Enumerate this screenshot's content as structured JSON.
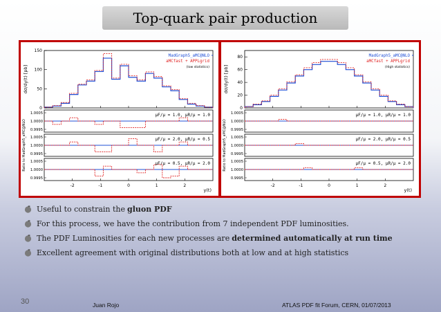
{
  "title": "Top-quark pair production",
  "bullets": [
    {
      "text": "Useful to constrain the",
      "bold": "gluon PDF"
    },
    {
      "text": "For this process, we have the contribution from 7 independent PDF luminosities.",
      "bold": ""
    },
    {
      "text": "The PDF Luminosities for each new processes are",
      "bold": "determined automatically at run time"
    },
    {
      "text": "Excellent agreement with original distributions both at low and at high statistics",
      "bold": ""
    }
  ],
  "footer": {
    "page": "30",
    "author": "Juan Rojo",
    "event": "ATLAS PDF fit Forum, CERN, 01/07/2013"
  },
  "colors": {
    "frame": "#c00000",
    "mg": "#1f4fd6",
    "appl": "#e02020"
  },
  "chart_data": [
    {
      "type": "line",
      "ylabel": "dσ/dy(t) [pb]",
      "ratio_ylabel": "Ratio to MadGraph5_aMC@NLO",
      "xlabel": "y(t)",
      "legend": [
        "MadGraph5_aMC@NLO",
        "aMCfast + APPLgrid"
      ],
      "note": "(low statistics)",
      "ylim": [
        0,
        150
      ],
      "yticks": [
        0,
        50,
        100,
        150
      ],
      "xlim": [
        -3,
        3
      ],
      "xticks": [
        -2,
        -1,
        0,
        1,
        2
      ],
      "bin_edges": [
        -3,
        -2.7,
        -2.4,
        -2.1,
        -1.8,
        -1.5,
        -1.2,
        -0.9,
        -0.6,
        -0.3,
        0,
        0.3,
        0.6,
        0.9,
        1.2,
        1.5,
        1.8,
        2.1,
        2.4,
        2.7,
        3
      ],
      "series": [
        {
          "name": "MadGraph5_aMC@NLO",
          "values": [
            2,
            5,
            12,
            35,
            60,
            70,
            95,
            130,
            75,
            110,
            80,
            70,
            90,
            78,
            55,
            45,
            22,
            10,
            5,
            2
          ]
        },
        {
          "name": "aMCfast + APPLgrid",
          "values": [
            2,
            6,
            14,
            38,
            62,
            73,
            98,
            142,
            78,
            114,
            84,
            73,
            94,
            82,
            58,
            48,
            24,
            12,
            6,
            2
          ]
        }
      ],
      "ratio_panels": [
        {
          "label": "μF/μ = 1.0, μR/μ = 1.0",
          "yticks": [
            "1.0005",
            "1.0000",
            "0.9995"
          ],
          "ratio": [
            1,
            0.9998,
            1,
            1.0002,
            1,
            1,
            0.9998,
            1,
            1,
            0.9996,
            0.9996,
            0.9996,
            1,
            1,
            1,
            1,
            1.0002,
            1,
            1,
            1
          ]
        },
        {
          "label": "μF/μ = 2.0, μR/μ = 0.5",
          "yticks": [
            "1.0005",
            "1.0000",
            "0.9995"
          ],
          "ratio": [
            1,
            1,
            1,
            1.0002,
            1,
            1,
            0.9996,
            0.9996,
            1,
            1,
            1.0004,
            1,
            1,
            0.9996,
            1,
            1,
            1.0002,
            1,
            1,
            1
          ]
        },
        {
          "label": "μF/μ = 0.5, μR/μ = 2.0",
          "yticks": [
            "1.0005",
            "1.0000",
            "0.9995"
          ],
          "ratio": [
            1,
            1,
            1,
            1,
            1,
            1,
            0.9996,
            1.0002,
            1,
            1,
            1,
            0.9998,
            1,
            1.0003,
            0.9995,
            0.9996,
            1.0002,
            1,
            1,
            1
          ]
        }
      ]
    },
    {
      "type": "line",
      "ylabel": "dσ/dy(t) [pb]",
      "ratio_ylabel": "Ratio to MadGraph5_aMC@NLO",
      "xlabel": "y(t)",
      "legend": [
        "MadGraph5_aMC@NLO",
        "aMCfast + APPLgrid"
      ],
      "note": "(High statistics)",
      "ylim": [
        0,
        90
      ],
      "yticks": [
        0,
        20,
        40,
        60,
        80
      ],
      "xlim": [
        -3,
        3
      ],
      "xticks": [
        -2,
        -1,
        0,
        1,
        2
      ],
      "bin_edges": [
        -3,
        -2.7,
        -2.4,
        -2.1,
        -1.8,
        -1.5,
        -1.2,
        -0.9,
        -0.6,
        -0.3,
        0,
        0.3,
        0.6,
        0.9,
        1.2,
        1.5,
        1.8,
        2.1,
        2.4,
        2.7,
        3
      ],
      "series": [
        {
          "name": "MadGraph5_aMC@NLO",
          "values": [
            2,
            5,
            10,
            18,
            28,
            39,
            50,
            60,
            68,
            73,
            73,
            68,
            60,
            50,
            39,
            28,
            18,
            10,
            5,
            2
          ]
        },
        {
          "name": "aMCfast + APPLgrid",
          "values": [
            2,
            6,
            11,
            20,
            30,
            41,
            52,
            63,
            71,
            76,
            76,
            71,
            63,
            52,
            41,
            30,
            20,
            11,
            6,
            2
          ]
        }
      ],
      "ratio_panels": [
        {
          "label": "μF/μ = 1.0, μR/μ = 1.0",
          "yticks": [
            "1.0005",
            "1.0000",
            "0.9995"
          ],
          "ratio": [
            1,
            1,
            1,
            1,
            1.0001,
            1,
            1,
            1,
            1,
            1,
            1,
            1,
            1,
            1,
            1,
            1,
            1,
            1,
            1,
            1
          ]
        },
        {
          "label": "μF/μ = 2.0, μR/μ = 0.5",
          "yticks": [
            "1.0005",
            "1.0000",
            "0.9995"
          ],
          "ratio": [
            1,
            1,
            1,
            1,
            1,
            1,
            1.0001,
            1,
            1,
            1,
            1,
            1,
            1,
            1,
            1,
            1,
            1,
            1,
            1,
            1
          ]
        },
        {
          "label": "μF/μ = 0.5, μR/μ = 2.0",
          "yticks": [
            "1.0005",
            "1.0000",
            "0.9995"
          ],
          "ratio": [
            1,
            1,
            1,
            1,
            1,
            1,
            1,
            1.0001,
            1,
            1,
            1,
            1,
            1,
            1.0001,
            1,
            1,
            1,
            1,
            1,
            1
          ]
        }
      ]
    }
  ]
}
